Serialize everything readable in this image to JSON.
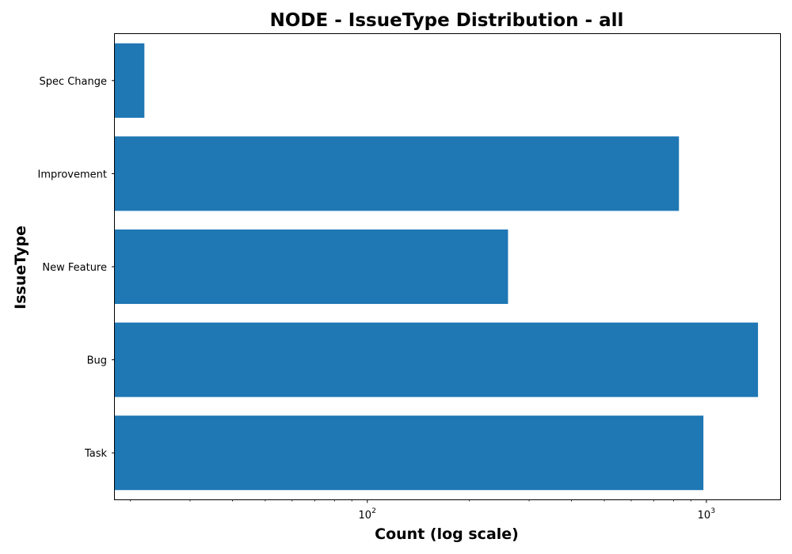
{
  "chart_data": {
    "type": "bar",
    "orientation": "horizontal",
    "title": "NODE - IssueType Distribution - all",
    "xlabel": "Count (log scale)",
    "ylabel": "IssueType",
    "x_scale": "log",
    "xlim": [
      18,
      1650
    ],
    "categories": [
      "Task",
      "Bug",
      "New Feature",
      "Improvement",
      "Spec Change"
    ],
    "values": [
      980,
      1420,
      260,
      830,
      22
    ],
    "x_major_ticks": [
      {
        "value": 100,
        "base": "10",
        "exponent": "2"
      },
      {
        "value": 1000,
        "base": "10",
        "exponent": "3"
      }
    ],
    "grid": false,
    "legend": "none",
    "colors": {
      "bar": "#1f77b4",
      "axis": "#000000",
      "background": "#ffffff"
    }
  }
}
